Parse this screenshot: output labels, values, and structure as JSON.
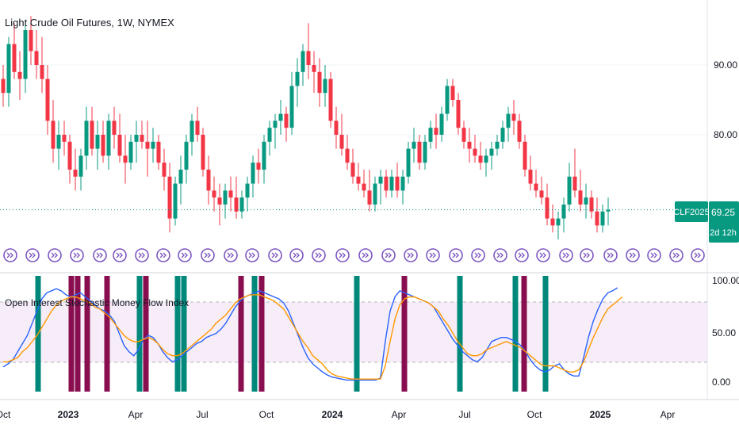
{
  "window": {
    "title": "Light Crude Oil Futures, 1W, NYMEX"
  },
  "price_axis": {
    "ticks": [
      "90.00",
      "80.00"
    ]
  },
  "badge": {
    "symbol": "CLF2025",
    "price": "69.25",
    "countdown": "2d 12h"
  },
  "indicator": {
    "title": "Open Interest Stochastic Money Flow Index",
    "ticks": [
      "100.00",
      "50.00",
      "0.00"
    ]
  },
  "time_axis": {
    "labels": [
      "Oct",
      "2023",
      "Apr",
      "Jul",
      "Oct",
      "2024",
      "Apr",
      "Jul",
      "Oct",
      "2025",
      "Apr"
    ]
  },
  "colors": {
    "up": "#089981",
    "down": "#f23645",
    "dev_icon": "#7e57c2",
    "fast_line": "#2962ff",
    "slow_line": "#ff9800",
    "green_bar": "#00897b",
    "maroon_bar": "#880e4f",
    "band": "#f3e5f5"
  },
  "chart_data": [
    {
      "type": "candlestick",
      "title": "Light Crude Oil Futures, 1W, NYMEX",
      "x_ticks": [
        "Oct",
        "2023",
        "Apr",
        "Jul",
        "Oct",
        "2024",
        "Apr",
        "Jul",
        "Oct",
        "2025",
        "Apr"
      ],
      "y_ticks": [
        90,
        80
      ],
      "ylim": [
        63,
        100
      ],
      "last_price": 69.25,
      "ohlc": [
        [
          88,
          90,
          84,
          86
        ],
        [
          86,
          94,
          84,
          93
        ],
        [
          93,
          96,
          88,
          89
        ],
        [
          89,
          92,
          85,
          88
        ],
        [
          88,
          96,
          86,
          95
        ],
        [
          95,
          97,
          90,
          92
        ],
        [
          92,
          95,
          88,
          90
        ],
        [
          90,
          94,
          86,
          88
        ],
        [
          88,
          90,
          80,
          82
        ],
        [
          82,
          85,
          76,
          78
        ],
        [
          78,
          82,
          75,
          80
        ],
        [
          80,
          82,
          77,
          79
        ],
        [
          79,
          80,
          73,
          75
        ],
        [
          75,
          78,
          72,
          74
        ],
        [
          74,
          78,
          72,
          77
        ],
        [
          77,
          84,
          75,
          82
        ],
        [
          82,
          84,
          77,
          78
        ],
        [
          78,
          82,
          75,
          80
        ],
        [
          80,
          82,
          76,
          77
        ],
        [
          77,
          83,
          75,
          82
        ],
        [
          82,
          84,
          78,
          80
        ],
        [
          80,
          83,
          76,
          77
        ],
        [
          77,
          80,
          73,
          76
        ],
        [
          76,
          80,
          75,
          79
        ],
        [
          79,
          82,
          76,
          80
        ],
        [
          80,
          82,
          78,
          79
        ],
        [
          79,
          82,
          74,
          78
        ],
        [
          78,
          81,
          76,
          79
        ],
        [
          79,
          80,
          75,
          76
        ],
        [
          76,
          78,
          72,
          74
        ],
        [
          74,
          76,
          66,
          68
        ],
        [
          68,
          74,
          67,
          73
        ],
        [
          73,
          77,
          70,
          75
        ],
        [
          75,
          80,
          73,
          79
        ],
        [
          79,
          83,
          77,
          82
        ],
        [
          82,
          84,
          79,
          80
        ],
        [
          80,
          81,
          74,
          75
        ],
        [
          75,
          77,
          70,
          72
        ],
        [
          72,
          74,
          69,
          71
        ],
        [
          71,
          73,
          67,
          70
        ],
        [
          70,
          73,
          68,
          72
        ],
        [
          72,
          74,
          69,
          71
        ],
        [
          71,
          74,
          68,
          69
        ],
        [
          69,
          72,
          68,
          71
        ],
        [
          71,
          74,
          69,
          73
        ],
        [
          73,
          77,
          71,
          76
        ],
        [
          76,
          78,
          73,
          75
        ],
        [
          75,
          80,
          73,
          79
        ],
        [
          79,
          82,
          77,
          81
        ],
        [
          81,
          83,
          78,
          82
        ],
        [
          82,
          85,
          80,
          83
        ],
        [
          83,
          84,
          79,
          81
        ],
        [
          81,
          89,
          80,
          87
        ],
        [
          87,
          91,
          84,
          89
        ],
        [
          89,
          93,
          87,
          92
        ],
        [
          92,
          96,
          88,
          90
        ],
        [
          90,
          92,
          86,
          89
        ],
        [
          89,
          91,
          84,
          86
        ],
        [
          86,
          90,
          84,
          88
        ],
        [
          88,
          89,
          81,
          82
        ],
        [
          82,
          84,
          78,
          80
        ],
        [
          80,
          83,
          77,
          78
        ],
        [
          78,
          80,
          75,
          76
        ],
        [
          76,
          78,
          73,
          74
        ],
        [
          74,
          76,
          72,
          73
        ],
        [
          73,
          75,
          71,
          72
        ],
        [
          72,
          75,
          69,
          70
        ],
        [
          70,
          74,
          69,
          73
        ],
        [
          73,
          75,
          70,
          74
        ],
        [
          74,
          75,
          71,
          72
        ],
        [
          72,
          75,
          71,
          74
        ],
        [
          74,
          76,
          71,
          72
        ],
        [
          72,
          75,
          70,
          74
        ],
        [
          74,
          79,
          73,
          78
        ],
        [
          78,
          81,
          76,
          79
        ],
        [
          79,
          80,
          75,
          76
        ],
        [
          76,
          80,
          75,
          79
        ],
        [
          79,
          82,
          78,
          81
        ],
        [
          81,
          83,
          78,
          80
        ],
        [
          80,
          84,
          79,
          83
        ],
        [
          83,
          88,
          82,
          87
        ],
        [
          87,
          88,
          84,
          85
        ],
        [
          85,
          86,
          80,
          81
        ],
        [
          81,
          82,
          78,
          79
        ],
        [
          79,
          81,
          76,
          78
        ],
        [
          78,
          80,
          76,
          77
        ],
        [
          77,
          79,
          75,
          76
        ],
        [
          76,
          78,
          74,
          77
        ],
        [
          77,
          79,
          75,
          78
        ],
        [
          78,
          80,
          77,
          79
        ],
        [
          79,
          82,
          78,
          81
        ],
        [
          81,
          84,
          79,
          83
        ],
        [
          83,
          85,
          80,
          82
        ],
        [
          82,
          83,
          78,
          79
        ],
        [
          79,
          80,
          74,
          75
        ],
        [
          75,
          77,
          72,
          73
        ],
        [
          73,
          75,
          71,
          72
        ],
        [
          72,
          74,
          70,
          71
        ],
        [
          71,
          73,
          67,
          68
        ],
        [
          68,
          70,
          66,
          67
        ],
        [
          67,
          69,
          65,
          68
        ],
        [
          68,
          71,
          66,
          70
        ],
        [
          70,
          76,
          69,
          74
        ],
        [
          74,
          78,
          71,
          72
        ],
        [
          72,
          75,
          69,
          70
        ],
        [
          70,
          73,
          68,
          71
        ],
        [
          71,
          72,
          68,
          69
        ],
        [
          69,
          71,
          66,
          67
        ],
        [
          67,
          70,
          66,
          69
        ],
        [
          69,
          71,
          67,
          69.25
        ]
      ]
    },
    {
      "type": "line",
      "title": "Open Interest Stochastic Money Flow Index",
      "ylim": [
        -5,
        100
      ],
      "y_ticks": [
        100,
        50,
        0
      ],
      "band": [
        20,
        80
      ],
      "series": [
        {
          "values": [
            15,
            18,
            22,
            30,
            38,
            46,
            58,
            70,
            82,
            88,
            90,
            92,
            90,
            86,
            84,
            86,
            88,
            84,
            80,
            76,
            72,
            70,
            66,
            60,
            48,
            36,
            30,
            26,
            32,
            42,
            46,
            44,
            38,
            30,
            24,
            20,
            22,
            26,
            30,
            34,
            38,
            40,
            44,
            46,
            48,
            52,
            58,
            66,
            74,
            80,
            84,
            86,
            88,
            90,
            88,
            86,
            84,
            82,
            78,
            70,
            58,
            46,
            34,
            24,
            18,
            14,
            10,
            7,
            5,
            4,
            3,
            2,
            2,
            2,
            2,
            2,
            2,
            2,
            4,
            40,
            70,
            84,
            90,
            88,
            86,
            84,
            82,
            80,
            78,
            74,
            66,
            58,
            50,
            42,
            36,
            30,
            26,
            22,
            20,
            24,
            32,
            40,
            42,
            44,
            44,
            42,
            40,
            36,
            30,
            22,
            16,
            12,
            10,
            12,
            16,
            18,
            12,
            8,
            6,
            6,
            24,
            44,
            60,
            72,
            82,
            88,
            90,
            93
          ]
        },
        {
          "values": [
            20,
            20,
            22,
            24,
            30,
            34,
            40,
            46,
            54,
            62,
            70,
            76,
            80,
            82,
            84,
            84,
            82,
            80,
            78,
            74,
            72,
            68,
            64,
            58,
            52,
            46,
            42,
            40,
            40,
            42,
            44,
            42,
            38,
            32,
            28,
            26,
            26,
            28,
            32,
            36,
            40,
            44,
            48,
            52,
            58,
            62,
            66,
            72,
            78,
            82,
            84,
            86,
            86,
            86,
            84,
            82,
            80,
            76,
            72,
            64,
            56,
            48,
            40,
            34,
            26,
            22,
            18,
            12,
            8,
            6,
            5,
            4,
            3,
            3,
            3,
            3,
            3,
            3,
            3,
            16,
            40,
            62,
            76,
            82,
            84,
            84,
            82,
            80,
            78,
            74,
            70,
            62,
            56,
            48,
            40,
            34,
            28,
            26,
            26,
            28,
            32,
            34,
            36,
            38,
            40,
            38,
            36,
            34,
            30,
            26,
            22,
            18,
            16,
            16,
            16,
            14,
            12,
            10,
            10,
            12,
            20,
            32,
            44,
            54,
            64,
            72,
            76,
            80,
            84
          ]
        }
      ]
    }
  ]
}
